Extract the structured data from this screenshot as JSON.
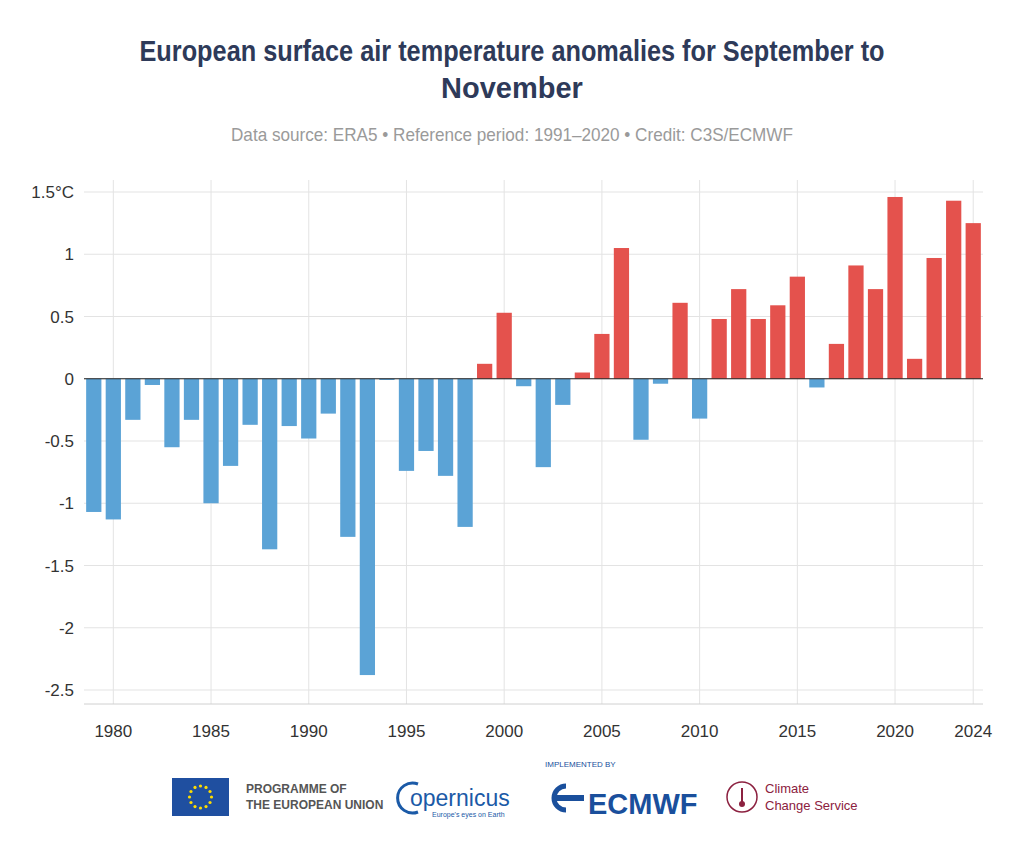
{
  "chart_data": {
    "type": "bar",
    "title": "European surface air temperature anomalies for September to November",
    "subtitle": "Data source: ERA5 • Reference period: 1991–2020 • Credit: C3S/ECMWF",
    "x": [
      1979,
      1980,
      1981,
      1982,
      1983,
      1984,
      1985,
      1986,
      1987,
      1988,
      1989,
      1990,
      1991,
      1992,
      1993,
      1994,
      1995,
      1996,
      1997,
      1998,
      1999,
      2000,
      2001,
      2002,
      2003,
      2004,
      2005,
      2006,
      2007,
      2008,
      2009,
      2010,
      2011,
      2012,
      2013,
      2014,
      2015,
      2016,
      2017,
      2018,
      2019,
      2020,
      2021,
      2022,
      2023,
      2024
    ],
    "values": [
      -1.07,
      -1.13,
      -0.33,
      -0.05,
      -0.55,
      -0.33,
      -1.0,
      -0.7,
      -0.37,
      -1.37,
      -0.38,
      -0.48,
      -0.28,
      -1.27,
      -2.38,
      -0.01,
      -0.74,
      -0.58,
      -0.78,
      -1.19,
      0.12,
      0.53,
      -0.06,
      -0.71,
      -0.21,
      0.05,
      0.36,
      1.05,
      -0.49,
      -0.04,
      0.61,
      -0.32,
      0.48,
      0.72,
      0.48,
      0.59,
      0.82,
      -0.07,
      0.28,
      0.91,
      0.72,
      1.46,
      0.16,
      0.97,
      1.43,
      1.25
    ],
    "colors": [
      "#5ba3d6",
      "#5ba3d6",
      "#5ba3d6",
      "#5ba3d6",
      "#5ba3d6",
      "#5ba3d6",
      "#5ba3d6",
      "#5ba3d6",
      "#5ba3d6",
      "#5ba3d6",
      "#5ba3d6",
      "#5ba3d6",
      "#5ba3d6",
      "#5ba3d6",
      "#5ba3d6",
      "#5ba3d6",
      "#5ba3d6",
      "#5ba3d6",
      "#5ba3d6",
      "#5ba3d6",
      "#e4524d",
      "#e4524d",
      "#5ba3d6",
      "#5ba3d6",
      "#5ba3d6",
      "#e4524d",
      "#e4524d",
      "#e4524d",
      "#5ba3d6",
      "#5ba3d6",
      "#e4524d",
      "#5ba3d6",
      "#e4524d",
      "#e4524d",
      "#e4524d",
      "#e4524d",
      "#e4524d",
      "#5ba3d6",
      "#e4524d",
      "#e4524d",
      "#e4524d",
      "#e4524d",
      "#e4524d",
      "#e4524d",
      "#e4524d",
      "#e4524d"
    ],
    "xlim": [
      1978.5,
      2024.5
    ],
    "xticks": [
      1980,
      1985,
      1990,
      1995,
      2000,
      2005,
      2010,
      2015,
      2020,
      2024
    ],
    "ylim": [
      -2.5,
      1.5
    ],
    "yticks": [
      -2.5,
      -2,
      -1.5,
      -1,
      -0.5,
      0,
      0.5,
      1,
      {
        "value": 1.5,
        "label": "1.5°C"
      }
    ],
    "grid": true
  },
  "footer": {
    "eu": [
      "PROGRAMME OF",
      "THE EUROPEAN UNION"
    ],
    "copernicus": "opernicus",
    "copernicus_tagline": "Europe's eyes on Earth",
    "implemented_by": "IMPLEMENTED BY",
    "ecmwf": "ECMWF",
    "c3s": [
      "Climate",
      "Change Service"
    ]
  }
}
